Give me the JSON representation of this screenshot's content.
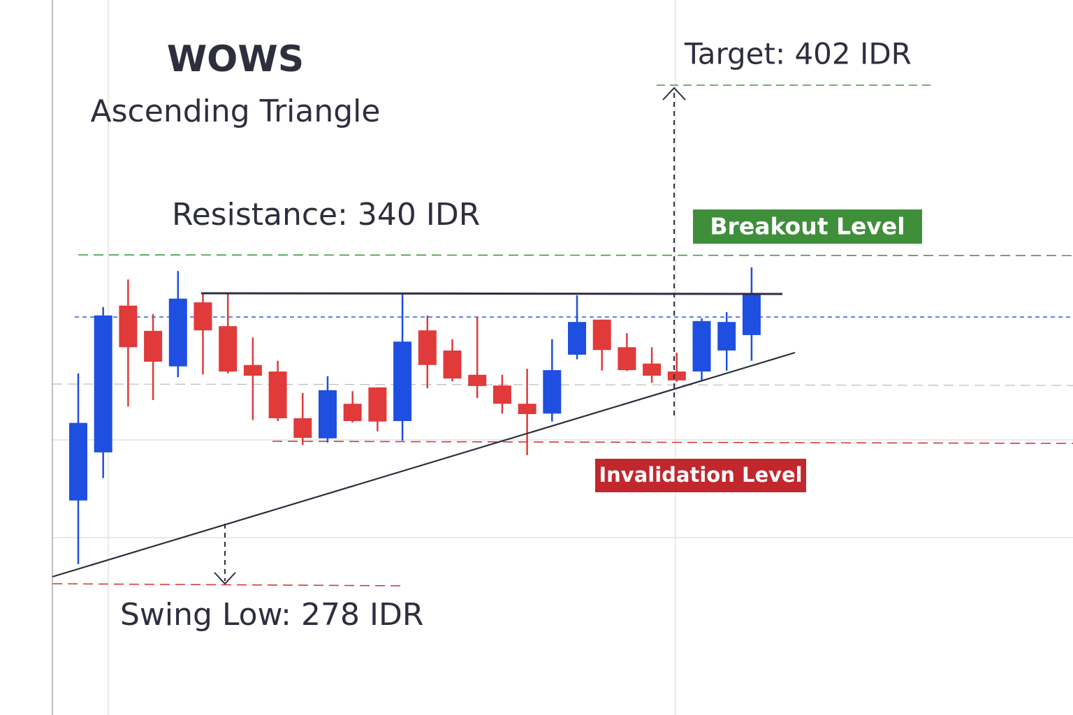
{
  "chart_data": {
    "type": "candlestick",
    "title": "WOWS",
    "subtitle": "Ascending Triangle",
    "annotations": {
      "resistance": "Resistance: 340 IDR",
      "target": "Target: 402 IDR",
      "breakout": "Breakout Level",
      "invalidation": "Invalidation Level",
      "swing_low": "Swing Low: 278 IDR"
    },
    "up_color": "#1f4fe0",
    "down_color": "#e03a3a",
    "ylim": [
      250,
      403
    ],
    "candles": [
      {
        "open": 295.9,
        "high": 323.1,
        "low": 282.3,
        "close": 312.5
      },
      {
        "open": 306.2,
        "high": 337.3,
        "low": 300.7,
        "close": 335.5
      },
      {
        "open": 337.6,
        "high": 343.2,
        "low": 316.0,
        "close": 328.7
      },
      {
        "open": 332.2,
        "high": 335.8,
        "low": 317.4,
        "close": 325.6
      },
      {
        "open": 324.6,
        "high": 345.0,
        "low": 322.3,
        "close": 339.1
      },
      {
        "open": 338.3,
        "high": 340.2,
        "low": 322.9,
        "close": 332.3
      },
      {
        "open": 333.2,
        "high": 340.2,
        "low": 323.1,
        "close": 323.5
      },
      {
        "open": 324.9,
        "high": 330.8,
        "low": 313.1,
        "close": 322.6
      },
      {
        "open": 323.5,
        "high": 325.8,
        "low": 312.9,
        "close": 313.5
      },
      {
        "open": 313.5,
        "high": 318.9,
        "low": 307.8,
        "close": 309.3
      },
      {
        "open": 309.2,
        "high": 322.5,
        "low": 308.3,
        "close": 319.5
      },
      {
        "open": 316.6,
        "high": 319.3,
        "low": 312.6,
        "close": 312.9
      },
      {
        "open": 320.1,
        "high": 320.1,
        "low": 310.7,
        "close": 312.8
      },
      {
        "open": 312.9,
        "high": 340.2,
        "low": 308.7,
        "close": 329.9
      },
      {
        "open": 332.3,
        "high": 335.5,
        "low": 319.9,
        "close": 324.9
      },
      {
        "open": 328.0,
        "high": 330.4,
        "low": 321.4,
        "close": 322.0
      },
      {
        "open": 322.8,
        "high": 335.2,
        "low": 317.8,
        "close": 320.4
      },
      {
        "open": 320.5,
        "high": 322.8,
        "low": 314.5,
        "close": 316.6
      },
      {
        "open": 316.6,
        "high": 324.1,
        "low": 305.6,
        "close": 314.4
      },
      {
        "open": 314.5,
        "high": 330.4,
        "low": 312.8,
        "close": 323.8
      },
      {
        "open": 327.1,
        "high": 339.8,
        "low": 326.1,
        "close": 334.1
      },
      {
        "open": 334.6,
        "high": 334.6,
        "low": 323.7,
        "close": 328.1
      },
      {
        "open": 328.7,
        "high": 331.7,
        "low": 323.6,
        "close": 323.8
      },
      {
        "open": 325.2,
        "high": 328.7,
        "low": 321.1,
        "close": 322.6
      },
      {
        "open": 323.5,
        "high": 327.5,
        "low": 321.3,
        "close": 321.6
      },
      {
        "open": 323.5,
        "high": 334.9,
        "low": 321.6,
        "close": 334.3
      },
      {
        "open": 328.0,
        "high": 336.2,
        "low": 323.7,
        "close": 334.1
      },
      {
        "open": 331.3,
        "high": 345.8,
        "low": 325.8,
        "close": 340.2
      }
    ]
  }
}
